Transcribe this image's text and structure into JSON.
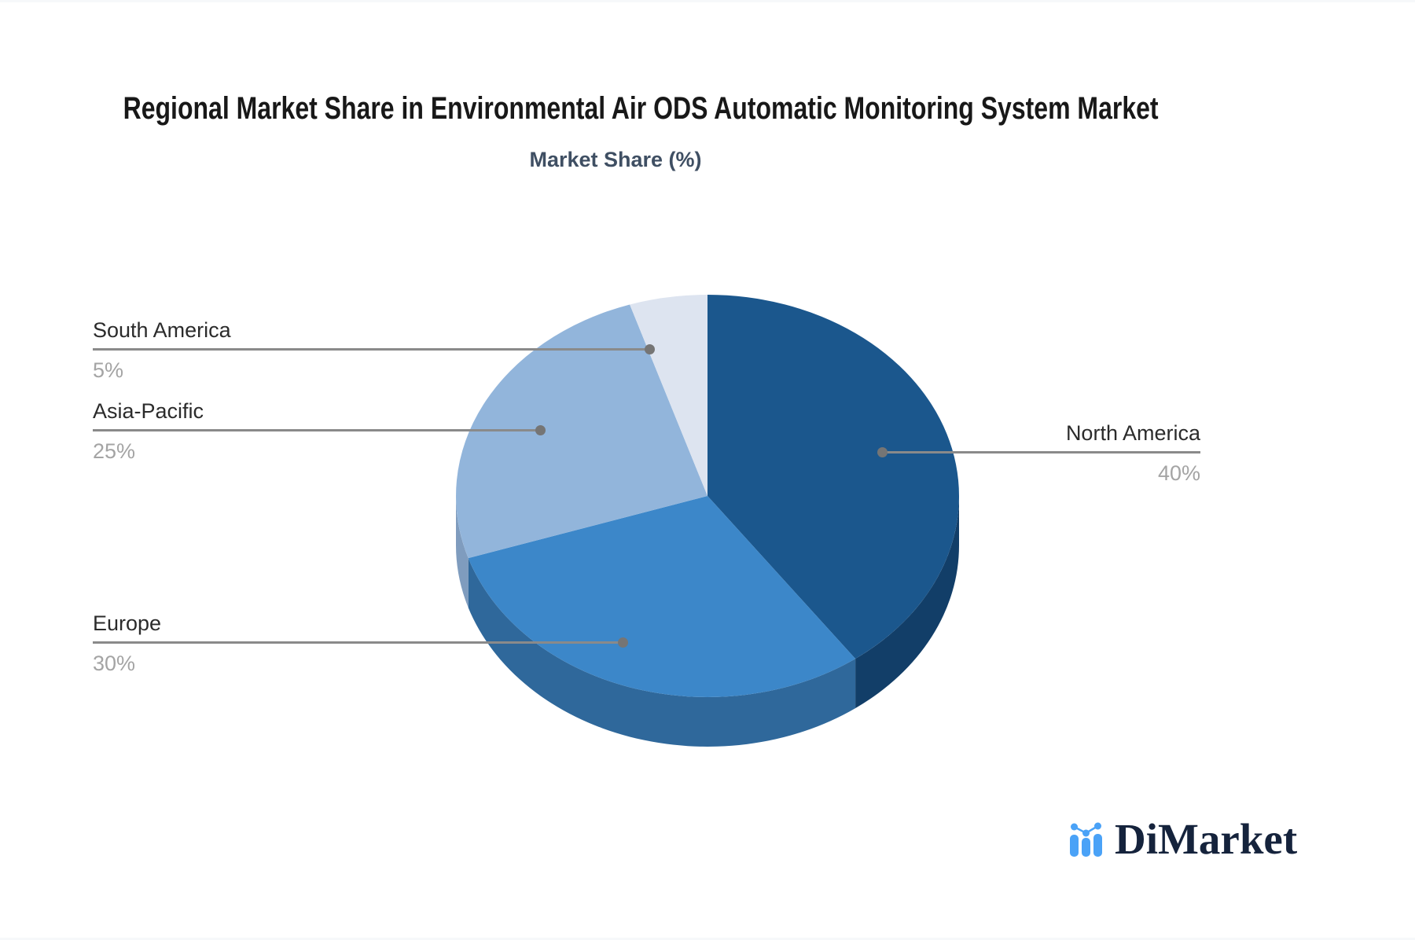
{
  "header": {
    "title": "Regional Market Share in Environmental Air ODS Automatic Monitoring System Market",
    "subtitle": "Market Share (%)"
  },
  "chart_data": {
    "type": "pie",
    "title": "Regional Market Share in Environmental Air ODS Automatic Monitoring System Market",
    "subtitle": "Market Share (%)",
    "unit": "%",
    "effect": "3d",
    "start_angle": "12-oclock",
    "direction": "clockwise",
    "legend": "none",
    "series": [
      {
        "label": "North America",
        "value": 40,
        "display_value": "40%",
        "color": "#1b578d",
        "side_color": "#123e68"
      },
      {
        "label": "Europe",
        "value": 30,
        "display_value": "30%",
        "color": "#3c87c9",
        "side_color": "#2f689b"
      },
      {
        "label": "Asia-Pacific",
        "value": 25,
        "display_value": "25%",
        "color": "#92b5db",
        "side_color": "#7f9cbe"
      },
      {
        "label": "South America",
        "value": 5,
        "display_value": "5%",
        "color": "#dde4f0",
        "side_color": "#c9d2e0"
      }
    ],
    "label_style": {
      "name_color": "#2b2b2b",
      "value_color": "#a4a4a4",
      "line_color": "#8a8a8a"
    }
  },
  "branding": {
    "logo_text": "DiMarket",
    "logo_icon": "bar-chart-icon",
    "text_color": "#15233c",
    "icon_color": "#4aa2f7"
  }
}
